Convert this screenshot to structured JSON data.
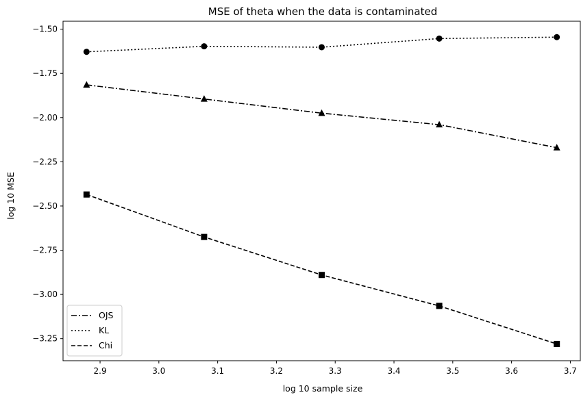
{
  "chart_data": {
    "type": "line",
    "title": "MSE of theta when the data is contaminated",
    "xlabel": "log 10 sample size",
    "ylabel": "log 10 MSE",
    "x": [
      2.877,
      3.077,
      3.277,
      3.477,
      3.677
    ],
    "xlim": [
      2.837,
      3.717
    ],
    "ylim": [
      -3.375,
      -1.455
    ],
    "xticks": [
      2.9,
      3.0,
      3.1,
      3.2,
      3.3,
      3.4,
      3.5,
      3.6,
      3.7
    ],
    "xtick_labels": [
      "2.9",
      "3.0",
      "3.1",
      "3.2",
      "3.3",
      "3.4",
      "3.5",
      "3.6",
      "3.7"
    ],
    "yticks": [
      -1.5,
      -1.75,
      -2.0,
      -2.25,
      -2.5,
      -2.75,
      -3.0,
      -3.25
    ],
    "ytick_labels": [
      "−1.50",
      "−1.75",
      "−2.00",
      "−2.25",
      "−2.50",
      "−2.75",
      "−3.00",
      "−3.25"
    ],
    "grid": false,
    "legend_position": "lower-left",
    "series": [
      {
        "name": "OJS",
        "linestyle": "dashdot",
        "marker": "triangle",
        "color": "#000000",
        "values": [
          -1.815,
          -1.895,
          -1.975,
          -2.04,
          -2.17
        ]
      },
      {
        "name": "KL",
        "linestyle": "dotted",
        "marker": "circle",
        "color": "#000000",
        "values": [
          -1.628,
          -1.597,
          -1.602,
          -1.553,
          -1.545
        ]
      },
      {
        "name": "Chi",
        "linestyle": "dashed",
        "marker": "square",
        "color": "#000000",
        "values": [
          -2.435,
          -2.675,
          -2.89,
          -3.065,
          -3.28
        ]
      }
    ]
  }
}
